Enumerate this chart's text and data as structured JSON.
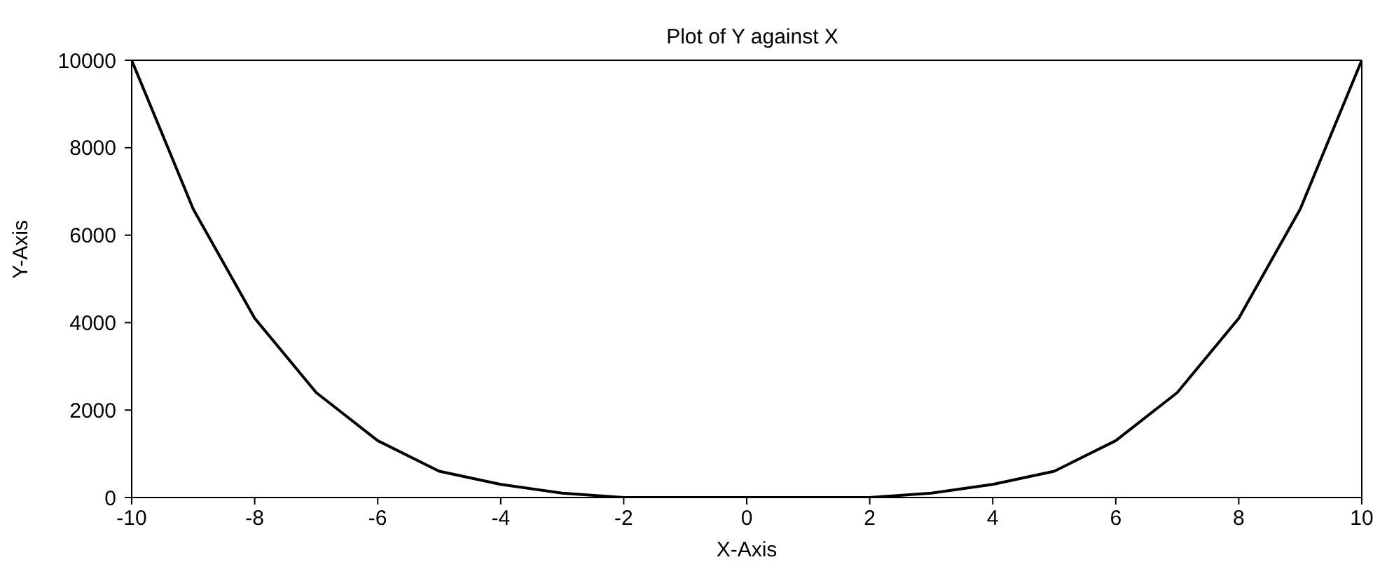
{
  "chart_data": {
    "type": "line",
    "title": "Plot of Y against X",
    "xlabel": "X-Axis",
    "ylabel": "Y-Axis",
    "x": [
      -10,
      -9,
      -8,
      -7,
      -6,
      -5,
      -4,
      -3,
      -2,
      -1,
      0,
      1,
      2,
      3,
      4,
      5,
      6,
      7,
      8,
      9,
      10
    ],
    "series": [
      {
        "color": "#000000",
        "values": [
          10000,
          6600,
          4100,
          2400,
          1300,
          600,
          300,
          100,
          0,
          0,
          0,
          0,
          0,
          100,
          300,
          600,
          1300,
          2400,
          4100,
          6600,
          10000
        ]
      }
    ],
    "xlim": [
      -10,
      10
    ],
    "xticks": [
      -10,
      -8,
      -6,
      -4,
      -2,
      0,
      2,
      4,
      6,
      8,
      10
    ],
    "ylim": [
      0,
      10000
    ],
    "yticks": [
      0,
      2000,
      4000,
      6000,
      8000,
      10000
    ],
    "grid": false,
    "legend": false,
    "marker": "none",
    "line_style": "solid"
  }
}
